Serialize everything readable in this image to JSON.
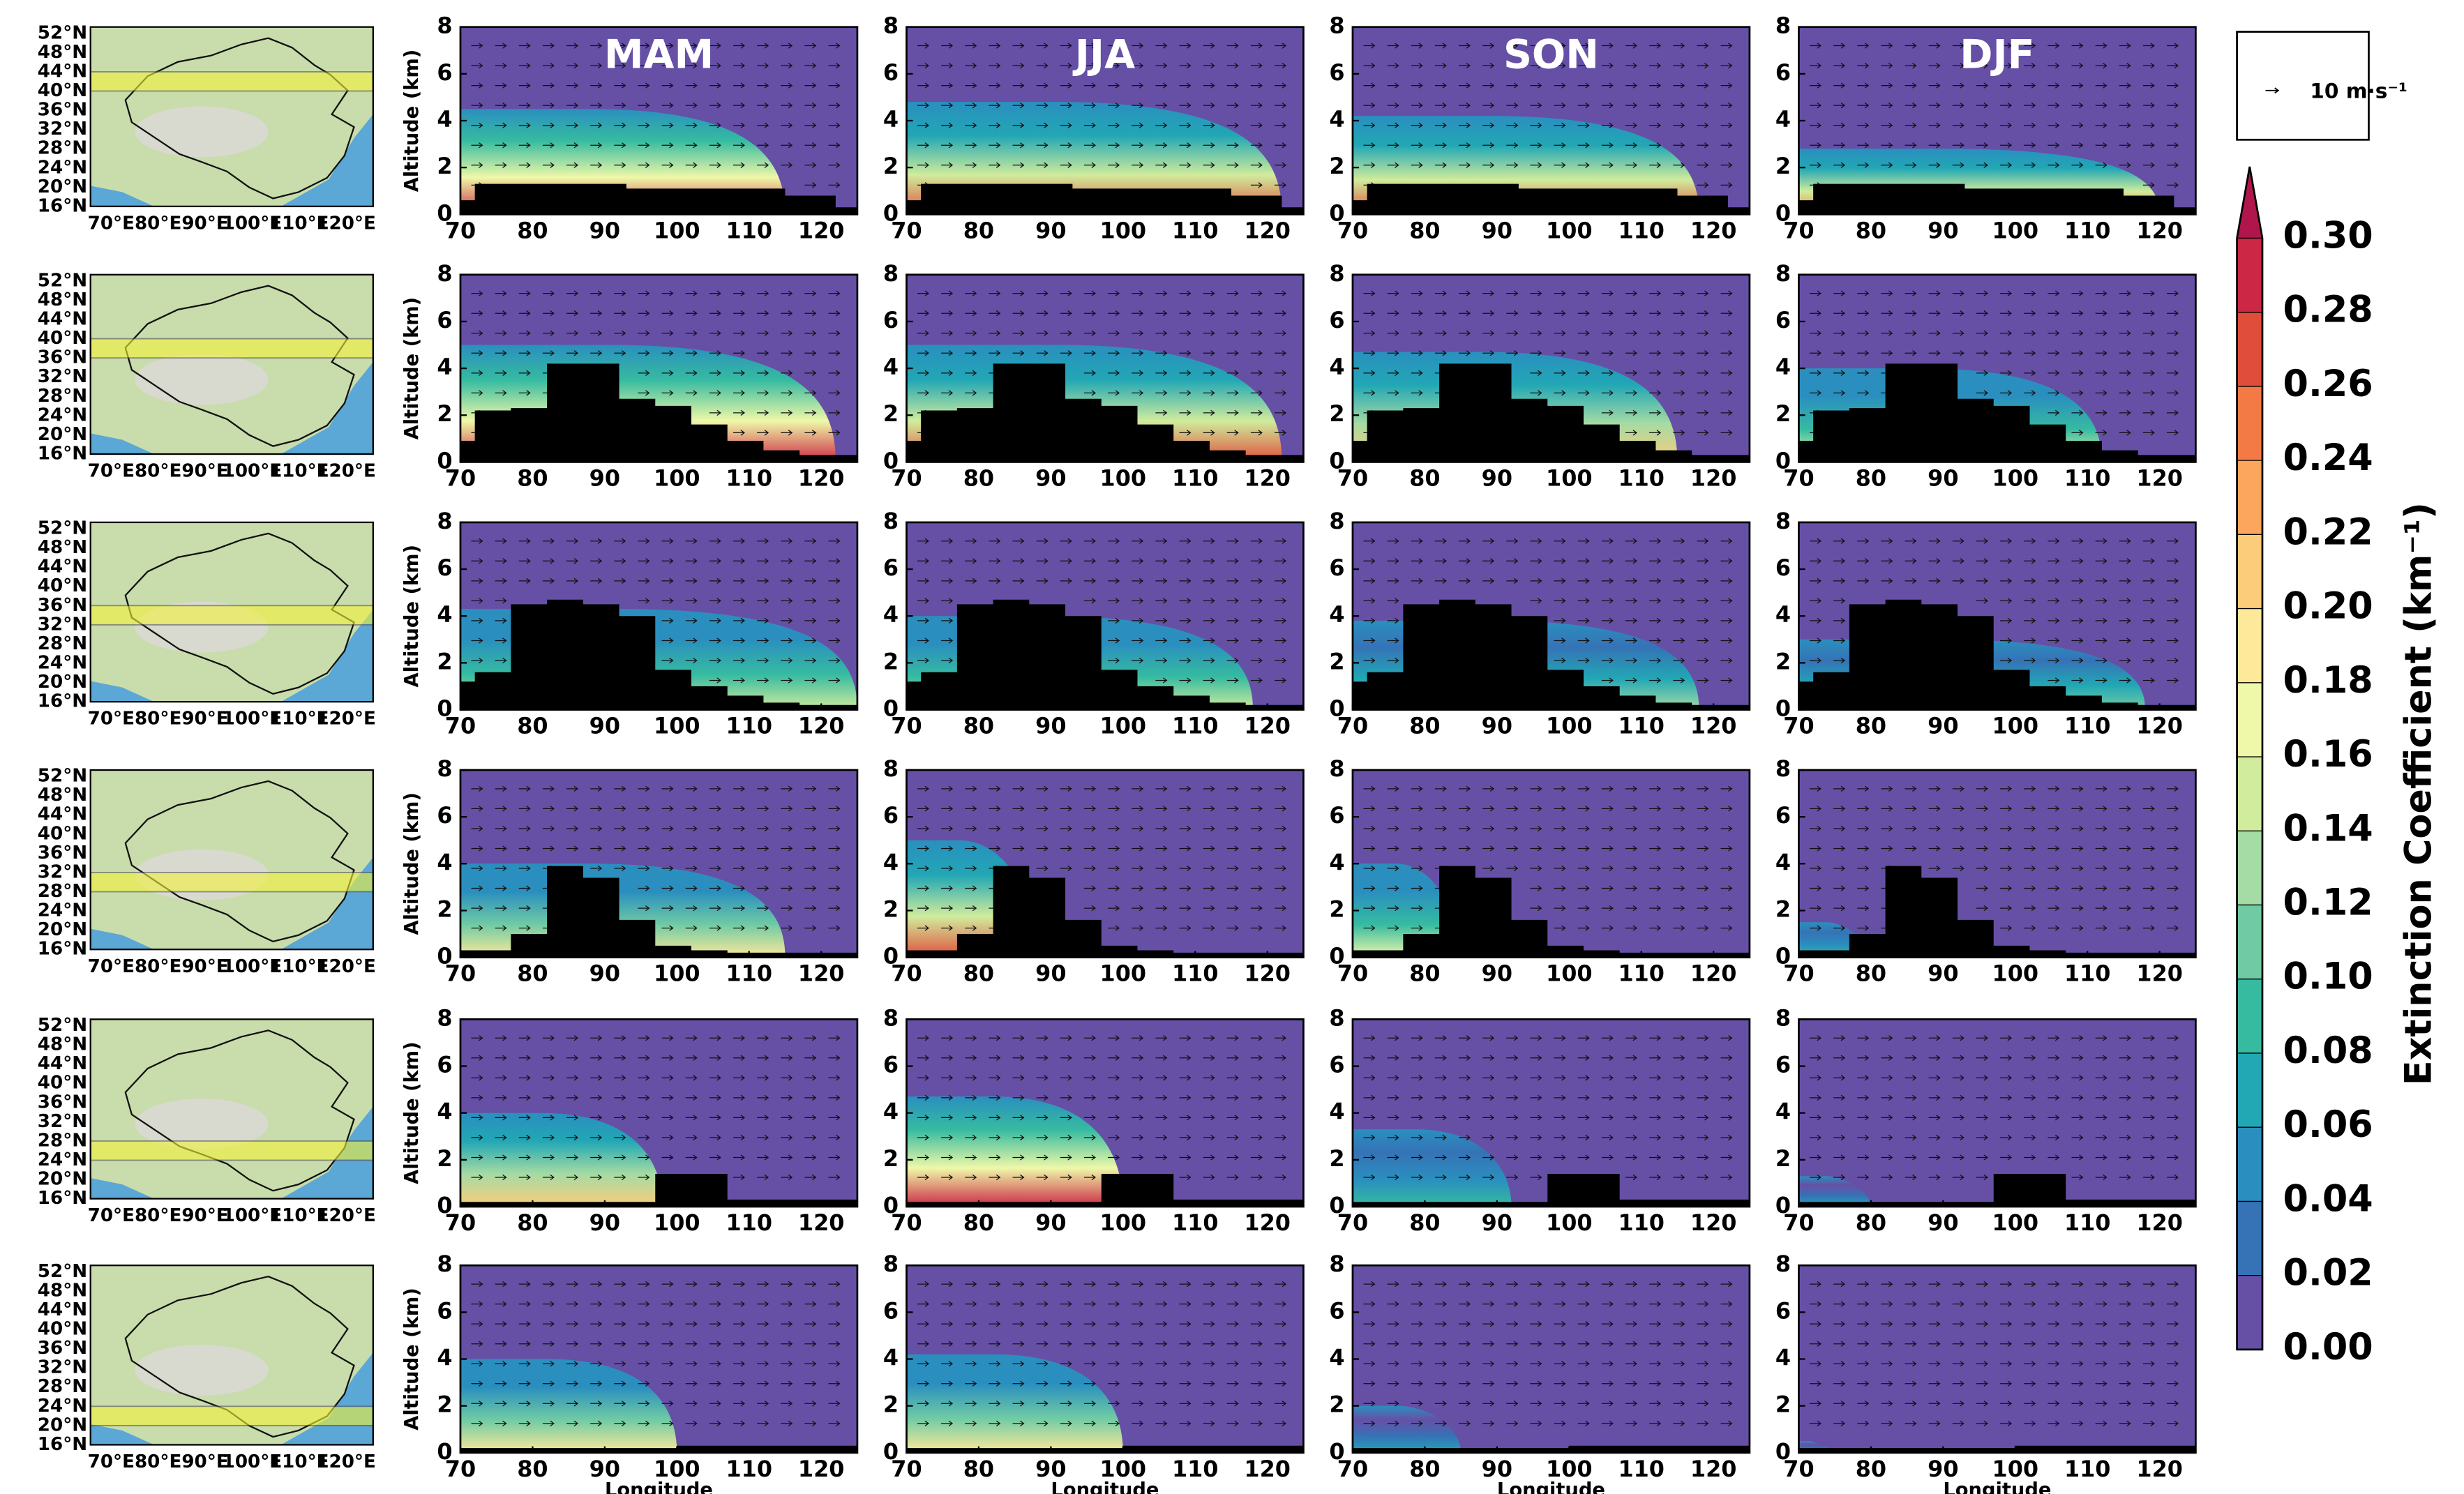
{
  "seasons": [
    "MAM",
    "JJA",
    "SON",
    "DJF"
  ],
  "axes": {
    "ylabel": "Altitude (km)",
    "xlabel": "Longitude",
    "xlim": [
      70,
      125
    ],
    "xticks": [
      70,
      80,
      90,
      100,
      110,
      120
    ],
    "ylim": [
      0,
      8
    ],
    "yticks": [
      0,
      2,
      4,
      6,
      8
    ]
  },
  "map": {
    "lat_ticks": [
      {
        "value": 52,
        "label": "52°N"
      },
      {
        "value": 48,
        "label": "48°N"
      },
      {
        "value": 44,
        "label": "44°N"
      },
      {
        "value": 40,
        "label": "40°N"
      },
      {
        "value": 36,
        "label": "36°N"
      },
      {
        "value": 32,
        "label": "32°N"
      },
      {
        "value": 28,
        "label": "28°N"
      },
      {
        "value": 24,
        "label": "24°N"
      },
      {
        "value": 20,
        "label": "20°N"
      },
      {
        "value": 16,
        "label": "16°N"
      }
    ],
    "lon_ticks": [
      {
        "value": 70,
        "label": "70°E"
      },
      {
        "value": 80,
        "label": "80°E"
      },
      {
        "value": 90,
        "label": "90°E"
      },
      {
        "value": 100,
        "label": "100°E"
      },
      {
        "value": 110,
        "label": "110°E"
      },
      {
        "value": 120,
        "label": "120°E"
      }
    ]
  },
  "rows": [
    {
      "lat_band": [
        40,
        44
      ],
      "terrain_edges": [
        70,
        72,
        93,
        115,
        122,
        125
      ],
      "terrain_alt": [
        0.6,
        1.3,
        1.1,
        0.8,
        0.3
      ],
      "plume_top": [
        4.5,
        4.8,
        4.2,
        2.8
      ],
      "plume_east": [
        115,
        122,
        118,
        120
      ],
      "peak": [
        0.28,
        0.26,
        0.26,
        0.24
      ]
    },
    {
      "lat_band": [
        36,
        40
      ],
      "terrain_edges": [
        70,
        72,
        77,
        82,
        92,
        97,
        102,
        107,
        112,
        117,
        125
      ],
      "terrain_alt": [
        0.9,
        2.2,
        2.3,
        4.2,
        2.7,
        2.4,
        1.6,
        0.9,
        0.5,
        0.3
      ],
      "plume_top": [
        5,
        5,
        4.7,
        4
      ],
      "plume_east": [
        122,
        122,
        115,
        112
      ],
      "peak": [
        0.28,
        0.26,
        0.2,
        0.16
      ]
    },
    {
      "lat_band": [
        32,
        36
      ],
      "terrain_edges": [
        70,
        72,
        77,
        82,
        87,
        92,
        97,
        102,
        107,
        112,
        117,
        125
      ],
      "terrain_alt": [
        1.2,
        1.6,
        4.5,
        4.7,
        4.5,
        4.0,
        1.7,
        1.0,
        0.6,
        0.3,
        0.2
      ],
      "plume_top": [
        4.3,
        4,
        3.8,
        3
      ],
      "plume_east": [
        125,
        118,
        118,
        118
      ],
      "peak": [
        0.14,
        0.14,
        0.12,
        0.1
      ]
    },
    {
      "lat_band": [
        28,
        32
      ],
      "terrain_edges": [
        70,
        77,
        82,
        87,
        92,
        97,
        102,
        107,
        125
      ],
      "terrain_alt": [
        0.3,
        1.0,
        3.9,
        3.4,
        1.6,
        0.5,
        0.3,
        0.2
      ],
      "plume_top": [
        4,
        5,
        4,
        1.5
      ],
      "plume_east": [
        115,
        88,
        85,
        80
      ],
      "peak": [
        0.18,
        0.26,
        0.16,
        0.08
      ]
    },
    {
      "lat_band": [
        24,
        28
      ],
      "terrain_edges": [
        70,
        97,
        107,
        125
      ],
      "terrain_alt": [
        0.2,
        1.4,
        0.3
      ],
      "plume_top": [
        4,
        4.7,
        3.3,
        1.3
      ],
      "plume_east": [
        98,
        100,
        92,
        80
      ],
      "peak": [
        0.2,
        0.28,
        0.08,
        0.06
      ]
    },
    {
      "lat_band": [
        20,
        24
      ],
      "terrain_edges": [
        70,
        100,
        125
      ],
      "terrain_alt": [
        0.2,
        0.3
      ],
      "plume_top": [
        4,
        4.2,
        2,
        0.5
      ],
      "plume_east": [
        100,
        100,
        85,
        75
      ],
      "peak": [
        0.18,
        0.18,
        0.06,
        0.04
      ]
    }
  ],
  "colorbar": {
    "label": "Extinction Coefficient (km⁻¹)",
    "ticks": [
      {
        "value": 0,
        "label": "0.00"
      },
      {
        "value": 0.02,
        "label": "0.02"
      },
      {
        "value": 0.04,
        "label": "0.04"
      },
      {
        "value": 0.06,
        "label": "0.06"
      },
      {
        "value": 0.08,
        "label": "0.08"
      },
      {
        "value": 0.1,
        "label": "0.10"
      },
      {
        "value": 0.12,
        "label": "0.12"
      },
      {
        "value": 0.14,
        "label": "0.14"
      },
      {
        "value": 0.16,
        "label": "0.16"
      },
      {
        "value": 0.18,
        "label": "0.18"
      },
      {
        "value": 0.2,
        "label": "0.20"
      },
      {
        "value": 0.22,
        "label": "0.22"
      },
      {
        "value": 0.24,
        "label": "0.24"
      },
      {
        "value": 0.26,
        "label": "0.26"
      },
      {
        "value": 0.28,
        "label": "0.28"
      },
      {
        "value": 0.3,
        "label": "0.30"
      }
    ],
    "colors": [
      "#6650a6",
      "#3573b6",
      "#2a8fbf",
      "#22a7b5",
      "#36bba1",
      "#70cba4",
      "#a5dba4",
      "#d0ec9c",
      "#eff8a8",
      "#fee99a",
      "#fdcc7a",
      "#fca55d",
      "#f47a45",
      "#e04e3b",
      "#cc2744"
    ],
    "extend_color": "#b0154b"
  },
  "wind_key": {
    "label": "10 m·s⁻¹"
  }
}
